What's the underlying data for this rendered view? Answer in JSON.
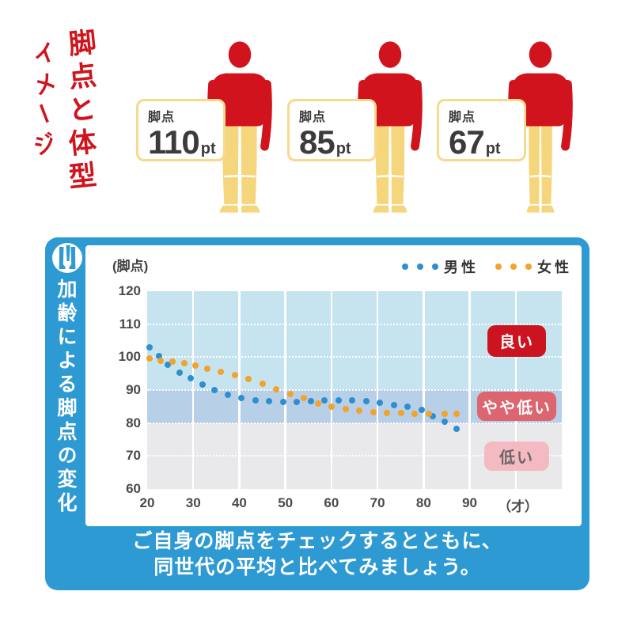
{
  "top": {
    "title_col1": "脚点と体型",
    "title_col2": "イメージ",
    "figures": [
      {
        "label": "脚点",
        "value": "110",
        "unit": "pt"
      },
      {
        "label": "脚点",
        "value": "85",
        "unit": "pt"
      },
      {
        "label": "脚点",
        "value": "67",
        "unit": "pt"
      }
    ]
  },
  "panel": {
    "side_title": "加齢による脚点の変化",
    "icon": "legs-icon",
    "caption_line1": "ご自身の脚点をチェックするとともに、",
    "caption_line2": "同世代の平均と比べてみましょう。"
  },
  "chart_data": {
    "type": "scatter",
    "y_unit_label": "(脚点)",
    "x_unit_label": "（才）",
    "x_ticks": [
      20,
      30,
      40,
      50,
      60,
      70,
      80,
      90
    ],
    "y_ticks": [
      120,
      110,
      100,
      90,
      80,
      70,
      60
    ],
    "xlim": [
      20,
      110
    ],
    "ylim": [
      60,
      120
    ],
    "grid": true,
    "legend_position": "top-right",
    "series": [
      {
        "name": "男性",
        "color": "#2e8fd0",
        "points": [
          [
            20.5,
            103
          ],
          [
            22.5,
            100.3
          ],
          [
            24.5,
            97.8
          ],
          [
            27,
            95.3
          ],
          [
            29.5,
            93.6
          ],
          [
            32,
            91.6
          ],
          [
            34.5,
            90
          ],
          [
            37.5,
            88.6
          ],
          [
            40.5,
            87.6
          ],
          [
            43.5,
            86.9
          ],
          [
            46.5,
            86.6
          ],
          [
            49.5,
            86.5
          ],
          [
            52.5,
            86.5
          ],
          [
            55.5,
            86.6
          ],
          [
            58.5,
            86.8
          ],
          [
            61.5,
            87
          ],
          [
            64.5,
            86.8
          ],
          [
            67.5,
            86.6
          ],
          [
            70.5,
            86.2
          ],
          [
            73.5,
            85.4
          ],
          [
            76.5,
            84.9
          ],
          [
            79.5,
            84
          ],
          [
            82,
            82.2
          ],
          [
            84.5,
            80.3
          ],
          [
            87,
            78.2
          ]
        ]
      },
      {
        "name": "女性",
        "color": "#f1a32b",
        "points": [
          [
            20.5,
            99.6
          ],
          [
            23,
            99
          ],
          [
            25.5,
            98.6
          ],
          [
            28,
            98.2
          ],
          [
            30.5,
            97.5
          ],
          [
            33,
            96.6
          ],
          [
            36,
            95.6
          ],
          [
            39,
            94.6
          ],
          [
            42,
            93.3
          ],
          [
            45,
            92
          ],
          [
            48,
            90.3
          ],
          [
            51,
            88.8
          ],
          [
            54,
            87.5
          ],
          [
            57,
            86
          ],
          [
            60,
            85
          ],
          [
            63,
            84.3
          ],
          [
            66,
            83.7
          ],
          [
            69,
            83.4
          ],
          [
            72,
            83.1
          ],
          [
            75,
            83
          ],
          [
            78,
            82.9
          ],
          [
            81,
            82.8
          ],
          [
            84.5,
            82.8
          ],
          [
            87,
            82.7
          ]
        ]
      }
    ],
    "bands": [
      {
        "label": "良い",
        "range": [
          90,
          120
        ],
        "band_color": "#c5e4f0",
        "badge_bg": "#cb1420",
        "badge_text": "#ffffff",
        "badge_w": 74,
        "badge_h": 40
      },
      {
        "label": "やや低い",
        "range": [
          80,
          90
        ],
        "band_color": "#b8cfe8",
        "badge_bg": "#dc6570",
        "badge_text": "#ffffff",
        "badge_w": 100,
        "badge_h": 37
      },
      {
        "label": "低い",
        "range": [
          60,
          80
        ],
        "band_color": "#e9e9ec",
        "badge_bg": "#f3bac2",
        "badge_text": "#6f6468",
        "badge_w": 82,
        "badge_h": 37
      }
    ]
  },
  "colors": {
    "red": "#d0131d",
    "yellow": "#f5d67c",
    "panel-blue": "#2e9ad3",
    "card-border": "#f7d98f"
  }
}
